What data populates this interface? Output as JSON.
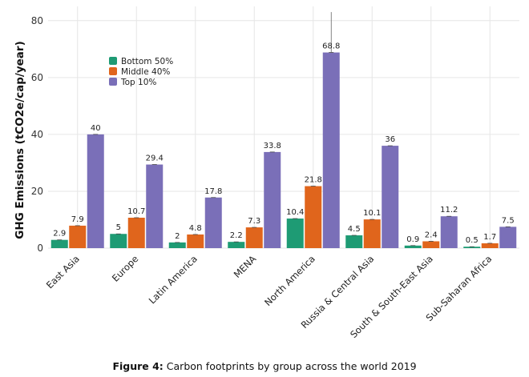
{
  "chart_data": {
    "type": "bar",
    "title": "",
    "caption_prefix": "Figure 4:",
    "caption_text": " Carbon footprints by group across the world 2019",
    "xlabel": "",
    "ylabel": "GHG Emissions (tCO2e/cap/year)",
    "ylim": [
      0,
      85
    ],
    "yticks": [
      0,
      20,
      40,
      60,
      80
    ],
    "grid": true,
    "legend_position": "top-left",
    "categories": [
      "East Asia",
      "Europe",
      "Latin America",
      "MENA",
      "North America",
      "Russia & Central Asia",
      "South & South-East Asia",
      "Sub-Saharan Africa"
    ],
    "series": [
      {
        "name": "Bottom 50%",
        "color": "#1e9b74",
        "values": [
          2.9,
          5,
          2,
          2.2,
          10.4,
          4.5,
          0.9,
          0.5
        ],
        "labels": [
          "2.9",
          "5",
          "2",
          "2.2",
          "10.4",
          "4.5",
          "0.9",
          "0.5"
        ]
      },
      {
        "name": "Middle 40%",
        "color": "#e0651c",
        "values": [
          7.9,
          10.7,
          4.8,
          7.3,
          21.8,
          10.1,
          2.4,
          1.7
        ],
        "labels": [
          "7.9",
          "10.7",
          "4.8",
          "7.3",
          "21.8",
          "10.1",
          "2.4",
          "1.7"
        ]
      },
      {
        "name": "Top 10%",
        "color": "#7a6fb8",
        "values": [
          40,
          29.4,
          17.8,
          33.8,
          68.8,
          36,
          11.2,
          7.5
        ],
        "labels": [
          "40",
          "29.4",
          "17.8",
          "33.8",
          "68.8",
          "36",
          "11.2",
          "7.5"
        ]
      }
    ]
  }
}
